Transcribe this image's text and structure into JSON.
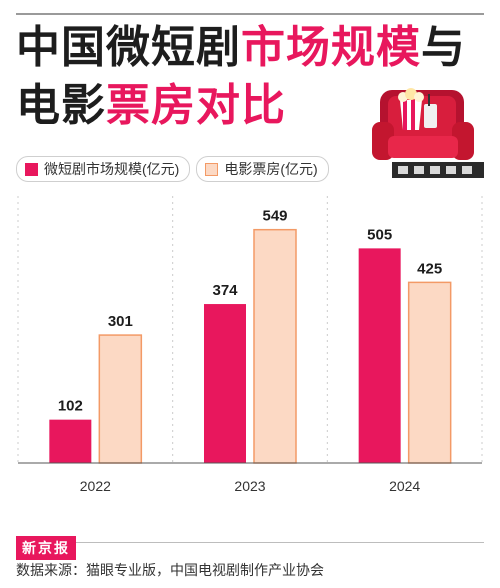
{
  "title": {
    "line1_dark": "中国微短剧",
    "line1_pink": "市场规模",
    "line1_end": "与",
    "line2_dark": "电影",
    "line2_pink": "票房对比"
  },
  "colors": {
    "microdrama": "#e8175d",
    "boxoffice_fill": "#fcd9c4",
    "boxoffice_stroke": "#f39a66",
    "title_accent": "#e8175d"
  },
  "chart_data": {
    "type": "bar",
    "categories": [
      "2022",
      "2023",
      "2024"
    ],
    "series": [
      {
        "name": "微短剧市场规模(亿元)",
        "values": [
          102,
          374,
          505
        ]
      },
      {
        "name": "电影票房(亿元)",
        "values": [
          301,
          549,
          425
        ]
      }
    ],
    "ylim": [
      0,
      600
    ],
    "grid": false,
    "legend": "top-left",
    "data_labels": true
  },
  "footer": {
    "brand": "新京报",
    "source": "数据来源：猫眼专业版，中国电视剧制作产业协会"
  },
  "decoration": {
    "icon": "cinema-seat-popcorn-icon"
  }
}
